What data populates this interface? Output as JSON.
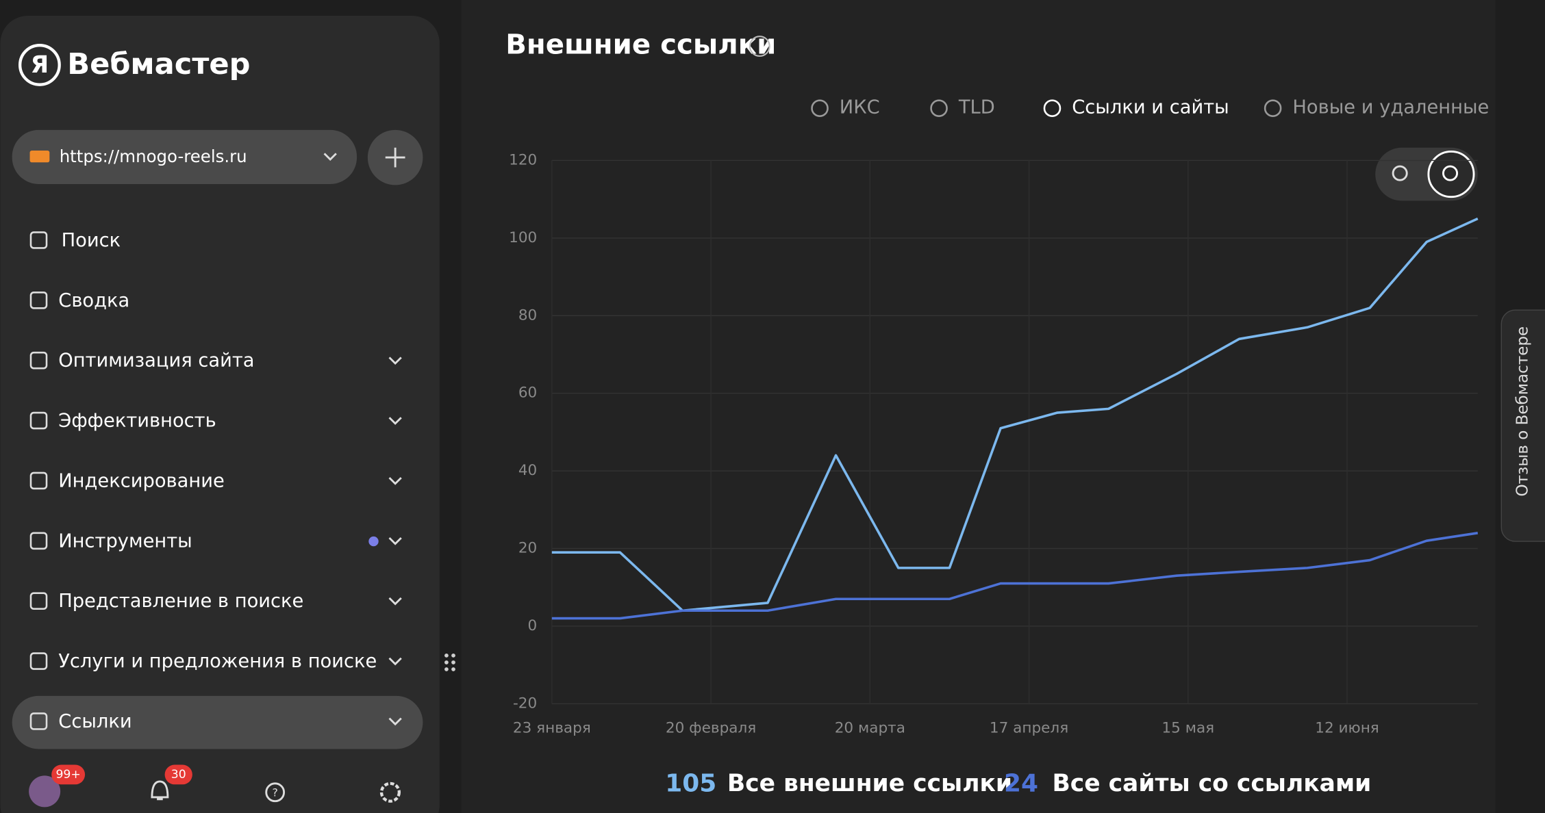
{
  "sidebar": {
    "brand": "Вебмастер",
    "site": "https://mnogo-reels.ru",
    "nav": [
      {
        "label": "Поиск",
        "expandable": false
      },
      {
        "label": "Сводка",
        "expandable": false
      },
      {
        "label": "Оптимизация сайта",
        "expandable": true
      },
      {
        "label": "Эффективность",
        "expandable": true
      },
      {
        "label": "Индексирование",
        "expandable": true
      },
      {
        "label": "Инструменты",
        "expandable": true
      },
      {
        "label": "Представление в поиске",
        "expandable": true
      },
      {
        "label": "Услуги и предложения в поиске",
        "expandable": true
      },
      {
        "label": "Ссылки",
        "expandable": true
      }
    ],
    "badges": [
      "99+",
      "30"
    ]
  },
  "header": {
    "title": "Внешние ссылки"
  },
  "tabs": [
    "ИКС",
    "TLD",
    "Ссылки и сайты",
    "Новые и удаленные"
  ],
  "feedback": "Отзыв о Вебмастере",
  "totals": [
    {
      "value": "105",
      "label": "Все внешние ссылки"
    },
    {
      "value": "24",
      "label": "Все сайты со ссылками"
    }
  ],
  "chart_data": {
    "type": "line",
    "x": [
      0,
      12,
      23,
      38,
      50,
      61,
      70,
      79,
      89,
      98,
      110,
      121,
      133,
      144,
      154,
      163
    ],
    "xlim": [
      0,
      163
    ],
    "xticks": [
      {
        "value": 0,
        "label": "23 января"
      },
      {
        "value": 28,
        "label": "20 февраля"
      },
      {
        "value": 56,
        "label": "20 марта"
      },
      {
        "value": 84,
        "label": "17 апреля"
      },
      {
        "value": 112,
        "label": "15 мая"
      },
      {
        "value": 140,
        "label": "12 июня"
      }
    ],
    "ylim": [
      -20,
      120
    ],
    "yticks": [
      -20,
      0,
      20,
      40,
      60,
      80,
      100,
      120
    ],
    "grid": true,
    "series": [
      {
        "name": "Все внешние ссылки",
        "color": "#7cb8ee",
        "values": [
          19,
          19,
          4,
          6,
          44,
          15,
          15,
          51,
          55,
          56,
          65,
          74,
          77,
          82,
          99,
          105
        ]
      },
      {
        "name": "Все сайты со ссылками",
        "color": "#4d72d6",
        "values": [
          2,
          2,
          4,
          4,
          7,
          7,
          7,
          11,
          11,
          11,
          13,
          14,
          15,
          17,
          22,
          24
        ]
      }
    ]
  }
}
